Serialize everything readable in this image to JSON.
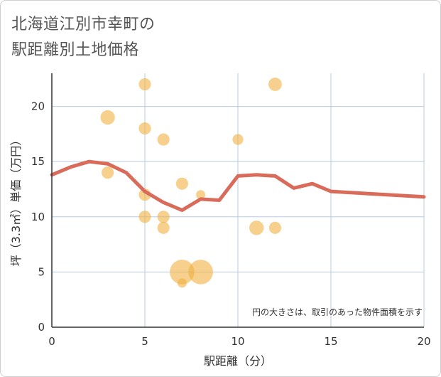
{
  "title_line1": "北海道江別市幸町の",
  "title_line2": "駅距離別土地価格",
  "chart_data": {
    "type": "scatter",
    "title": "北海道江別市幸町の駅距離別土地価格",
    "xlabel": "駅距離（分）",
    "ylabel": "坪（3.3㎡）単価（万円）",
    "xlim": [
      0,
      20
    ],
    "ylim": [
      0,
      23
    ],
    "xticks": [
      0,
      5,
      10,
      15,
      20
    ],
    "yticks": [
      0,
      5,
      10,
      15,
      20
    ],
    "grid": true,
    "note": "円の大きさは、取引のあった物件面積を示す",
    "colors": {
      "bubble": "#f0b040",
      "line": "#d96b5a",
      "grid": "#b8cbe0",
      "axis": "#333333"
    },
    "bubbles": [
      {
        "x": 3,
        "y": 19,
        "size": 3
      },
      {
        "x": 3,
        "y": 14,
        "size": 2
      },
      {
        "x": 5,
        "y": 22,
        "size": 2
      },
      {
        "x": 5,
        "y": 18,
        "size": 2
      },
      {
        "x": 5,
        "y": 12,
        "size": 2
      },
      {
        "x": 5,
        "y": 10,
        "size": 2
      },
      {
        "x": 6,
        "y": 17,
        "size": 2
      },
      {
        "x": 6,
        "y": 10,
        "size": 2
      },
      {
        "x": 6,
        "y": 9,
        "size": 2
      },
      {
        "x": 7,
        "y": 13,
        "size": 2
      },
      {
        "x": 7,
        "y": 5,
        "size": 10
      },
      {
        "x": 7,
        "y": 4,
        "size": 1
      },
      {
        "x": 8,
        "y": 12,
        "size": 1
      },
      {
        "x": 8,
        "y": 5,
        "size": 10
      },
      {
        "x": 10,
        "y": 17,
        "size": 1.5
      },
      {
        "x": 11,
        "y": 9,
        "size": 3
      },
      {
        "x": 12,
        "y": 22,
        "size": 2.5
      },
      {
        "x": 12,
        "y": 9,
        "size": 2
      }
    ],
    "trend": {
      "x": [
        0,
        1,
        2,
        3,
        4,
        5,
        6,
        7,
        8,
        9,
        10,
        11,
        12,
        13,
        14,
        15,
        20
      ],
      "y": [
        13.8,
        14.5,
        15.0,
        14.8,
        14.0,
        12.3,
        11.3,
        10.6,
        11.6,
        11.5,
        13.7,
        13.8,
        13.7,
        12.6,
        13.0,
        12.3,
        11.8
      ]
    }
  }
}
